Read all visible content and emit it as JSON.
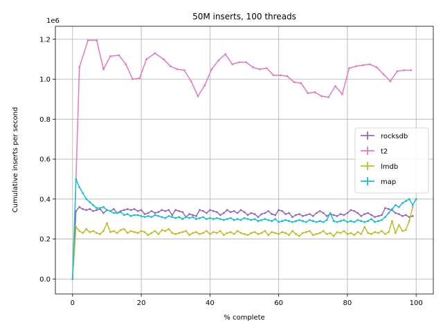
{
  "chart_data": {
    "type": "line",
    "title": "50M inserts, 100 threads",
    "xlabel": "% complete",
    "ylabel": "Cumulative inserts per second",
    "y_offset_label": "1e6",
    "xlim": [
      -5,
      105
    ],
    "ylim": [
      -0.075,
      1.265
    ],
    "x_ticks": [
      0,
      20,
      40,
      60,
      80,
      100
    ],
    "x_tick_labels": [
      "0",
      "20",
      "40",
      "60",
      "80",
      "100"
    ],
    "y_ticks": [
      0.0,
      0.2,
      0.4,
      0.6,
      0.8,
      1.0,
      1.2
    ],
    "y_tick_labels": [
      "0.0",
      "0.2",
      "0.4",
      "0.6",
      "0.8",
      "1.0",
      "1.2"
    ],
    "grid": true,
    "legend_position": "center-right",
    "y_unit_multiplier": 1000000,
    "series": [
      {
        "name": "rocksdb",
        "color": "#9467bd",
        "x": [
          0,
          1,
          2,
          3,
          4,
          5,
          6,
          7,
          8,
          9,
          10,
          11,
          12,
          13,
          14,
          15,
          16,
          17,
          18,
          19,
          20,
          21,
          22,
          23,
          24,
          25,
          26,
          27,
          28,
          29,
          30,
          31,
          32,
          33,
          34,
          35,
          36,
          37,
          38,
          39,
          40,
          41,
          42,
          43,
          44,
          45,
          46,
          47,
          48,
          49,
          50,
          51,
          52,
          53,
          54,
          55,
          56,
          57,
          58,
          59,
          60,
          61,
          62,
          63,
          64,
          65,
          66,
          67,
          68,
          69,
          70,
          71,
          72,
          73,
          74,
          75,
          76,
          77,
          78,
          79,
          80,
          81,
          82,
          83,
          84,
          85,
          86,
          87,
          88,
          89,
          90,
          91,
          92,
          93,
          94,
          95,
          96,
          97,
          98,
          99
        ],
        "values": [
          0.0,
          0.34,
          0.36,
          0.35,
          0.345,
          0.35,
          0.34,
          0.345,
          0.35,
          0.33,
          0.345,
          0.34,
          0.35,
          0.33,
          0.34,
          0.345,
          0.35,
          0.345,
          0.35,
          0.34,
          0.345,
          0.325,
          0.33,
          0.34,
          0.33,
          0.335,
          0.345,
          0.34,
          0.345,
          0.32,
          0.345,
          0.34,
          0.335,
          0.31,
          0.325,
          0.32,
          0.315,
          0.345,
          0.34,
          0.33,
          0.345,
          0.34,
          0.335,
          0.32,
          0.33,
          0.345,
          0.335,
          0.34,
          0.33,
          0.345,
          0.335,
          0.32,
          0.33,
          0.325,
          0.31,
          0.325,
          0.33,
          0.34,
          0.325,
          0.32,
          0.345,
          0.34,
          0.325,
          0.33,
          0.31,
          0.32,
          0.325,
          0.315,
          0.32,
          0.325,
          0.315,
          0.33,
          0.34,
          0.33,
          0.315,
          0.325,
          0.32,
          0.315,
          0.325,
          0.32,
          0.33,
          0.345,
          0.34,
          0.33,
          0.315,
          0.325,
          0.33,
          0.32,
          0.31,
          0.315,
          0.32,
          0.355,
          0.35,
          0.345,
          0.33,
          0.325,
          0.315,
          0.32,
          0.31,
          0.315
        ]
      },
      {
        "name": "t2",
        "color": "#e377c2",
        "x": [
          0,
          1,
          2,
          4.5,
          7,
          9,
          11,
          13.5,
          15.5,
          17.5,
          19.5,
          21.5,
          24,
          26.5,
          28.5,
          30.5,
          32.5,
          34.5,
          36.5,
          38.5,
          40.5,
          42.5,
          44.5,
          46.5,
          48.5,
          50.5,
          52.5,
          54.5,
          56.5,
          58.5,
          60.5,
          62.5,
          64.5,
          66.5,
          68.5,
          70.5,
          72.5,
          74.5,
          76.5,
          78.5,
          80.5,
          82.5,
          84.5,
          86.5,
          88.5,
          90.5,
          92.5,
          94.5,
          96.5,
          98.5
        ],
        "values": [
          0.0,
          0.5,
          1.06,
          1.195,
          1.195,
          1.05,
          1.115,
          1.12,
          1.075,
          1.0,
          1.005,
          1.1,
          1.13,
          1.1,
          1.065,
          1.05,
          1.045,
          0.99,
          0.915,
          0.97,
          1.05,
          1.095,
          1.125,
          1.075,
          1.085,
          1.085,
          1.06,
          1.05,
          1.055,
          1.02,
          1.02,
          1.015,
          0.985,
          0.98,
          0.93,
          0.935,
          0.915,
          0.91,
          0.965,
          0.925,
          1.055,
          1.065,
          1.07,
          1.075,
          1.06,
          1.025,
          0.99,
          1.04,
          1.045,
          1.045
        ]
      },
      {
        "name": "lmdb",
        "color": "#bcbd22",
        "x": [
          0,
          1,
          2,
          3,
          4,
          5,
          6,
          7,
          8,
          9,
          10,
          11,
          12,
          13,
          14,
          15,
          16,
          17,
          18,
          19,
          20,
          21,
          22,
          23,
          24,
          25,
          26,
          27,
          28,
          29,
          30,
          31,
          32,
          33,
          34,
          35,
          36,
          37,
          38,
          39,
          40,
          41,
          42,
          43,
          44,
          45,
          46,
          47,
          48,
          49,
          50,
          51,
          52,
          53,
          54,
          55,
          56,
          57,
          58,
          59,
          60,
          61,
          62,
          63,
          64,
          65,
          66,
          67,
          68,
          69,
          70,
          71,
          72,
          73,
          74,
          75,
          76,
          77,
          78,
          79,
          80,
          81,
          82,
          83,
          84,
          85,
          86,
          87,
          88,
          89,
          90,
          91,
          92,
          93,
          94,
          95,
          96,
          97,
          98,
          99
        ],
        "values": [
          0.0,
          0.26,
          0.24,
          0.23,
          0.25,
          0.235,
          0.24,
          0.23,
          0.225,
          0.24,
          0.28,
          0.235,
          0.24,
          0.23,
          0.245,
          0.25,
          0.23,
          0.24,
          0.235,
          0.23,
          0.24,
          0.235,
          0.22,
          0.23,
          0.24,
          0.225,
          0.245,
          0.24,
          0.25,
          0.23,
          0.225,
          0.23,
          0.235,
          0.24,
          0.22,
          0.23,
          0.235,
          0.225,
          0.23,
          0.24,
          0.225,
          0.235,
          0.23,
          0.24,
          0.22,
          0.23,
          0.235,
          0.225,
          0.24,
          0.23,
          0.225,
          0.22,
          0.23,
          0.235,
          0.225,
          0.23,
          0.24,
          0.22,
          0.235,
          0.23,
          0.225,
          0.235,
          0.23,
          0.22,
          0.24,
          0.225,
          0.215,
          0.23,
          0.235,
          0.24,
          0.22,
          0.225,
          0.23,
          0.24,
          0.225,
          0.23,
          0.215,
          0.235,
          0.23,
          0.24,
          0.225,
          0.23,
          0.22,
          0.235,
          0.225,
          0.26,
          0.23,
          0.225,
          0.235,
          0.23,
          0.24,
          0.225,
          0.235,
          0.29,
          0.23,
          0.27,
          0.24,
          0.245,
          0.29,
          0.36
        ]
      },
      {
        "name": "map",
        "color": "#17becf",
        "x": [
          0,
          1,
          2,
          3,
          4,
          5,
          6,
          7,
          8,
          9,
          10,
          11,
          12,
          13,
          14,
          15,
          16,
          17,
          18,
          19,
          20,
          21,
          22,
          23,
          24,
          25,
          26,
          27,
          28,
          29,
          30,
          31,
          32,
          33,
          34,
          35,
          36,
          37,
          38,
          39,
          40,
          41,
          42,
          43,
          44,
          45,
          46,
          47,
          48,
          49,
          50,
          51,
          52,
          53,
          54,
          55,
          56,
          57,
          58,
          59,
          60,
          61,
          62,
          63,
          64,
          65,
          66,
          67,
          68,
          69,
          70,
          71,
          72,
          73,
          74,
          75,
          76,
          77,
          78,
          79,
          80,
          81,
          82,
          83,
          84,
          85,
          86,
          87,
          88,
          89,
          90,
          91,
          92,
          93,
          94,
          95,
          96,
          97,
          98,
          99,
          100
        ],
        "values": [
          0.0,
          0.5,
          0.46,
          0.43,
          0.4,
          0.385,
          0.37,
          0.355,
          0.355,
          0.36,
          0.345,
          0.34,
          0.33,
          0.33,
          0.335,
          0.32,
          0.325,
          0.315,
          0.32,
          0.32,
          0.315,
          0.31,
          0.315,
          0.31,
          0.32,
          0.315,
          0.31,
          0.305,
          0.315,
          0.31,
          0.305,
          0.31,
          0.3,
          0.31,
          0.305,
          0.31,
          0.3,
          0.305,
          0.31,
          0.3,
          0.305,
          0.3,
          0.305,
          0.3,
          0.295,
          0.3,
          0.305,
          0.295,
          0.3,
          0.295,
          0.305,
          0.3,
          0.295,
          0.3,
          0.29,
          0.295,
          0.3,
          0.295,
          0.29,
          0.3,
          0.285,
          0.29,
          0.295,
          0.29,
          0.285,
          0.29,
          0.295,
          0.29,
          0.285,
          0.295,
          0.29,
          0.285,
          0.29,
          0.285,
          0.295,
          0.33,
          0.29,
          0.285,
          0.29,
          0.295,
          0.285,
          0.29,
          0.285,
          0.295,
          0.29,
          0.285,
          0.29,
          0.3,
          0.285,
          0.29,
          0.295,
          0.31,
          0.33,
          0.35,
          0.37,
          0.36,
          0.38,
          0.39,
          0.4,
          0.37,
          0.4
        ]
      }
    ]
  }
}
